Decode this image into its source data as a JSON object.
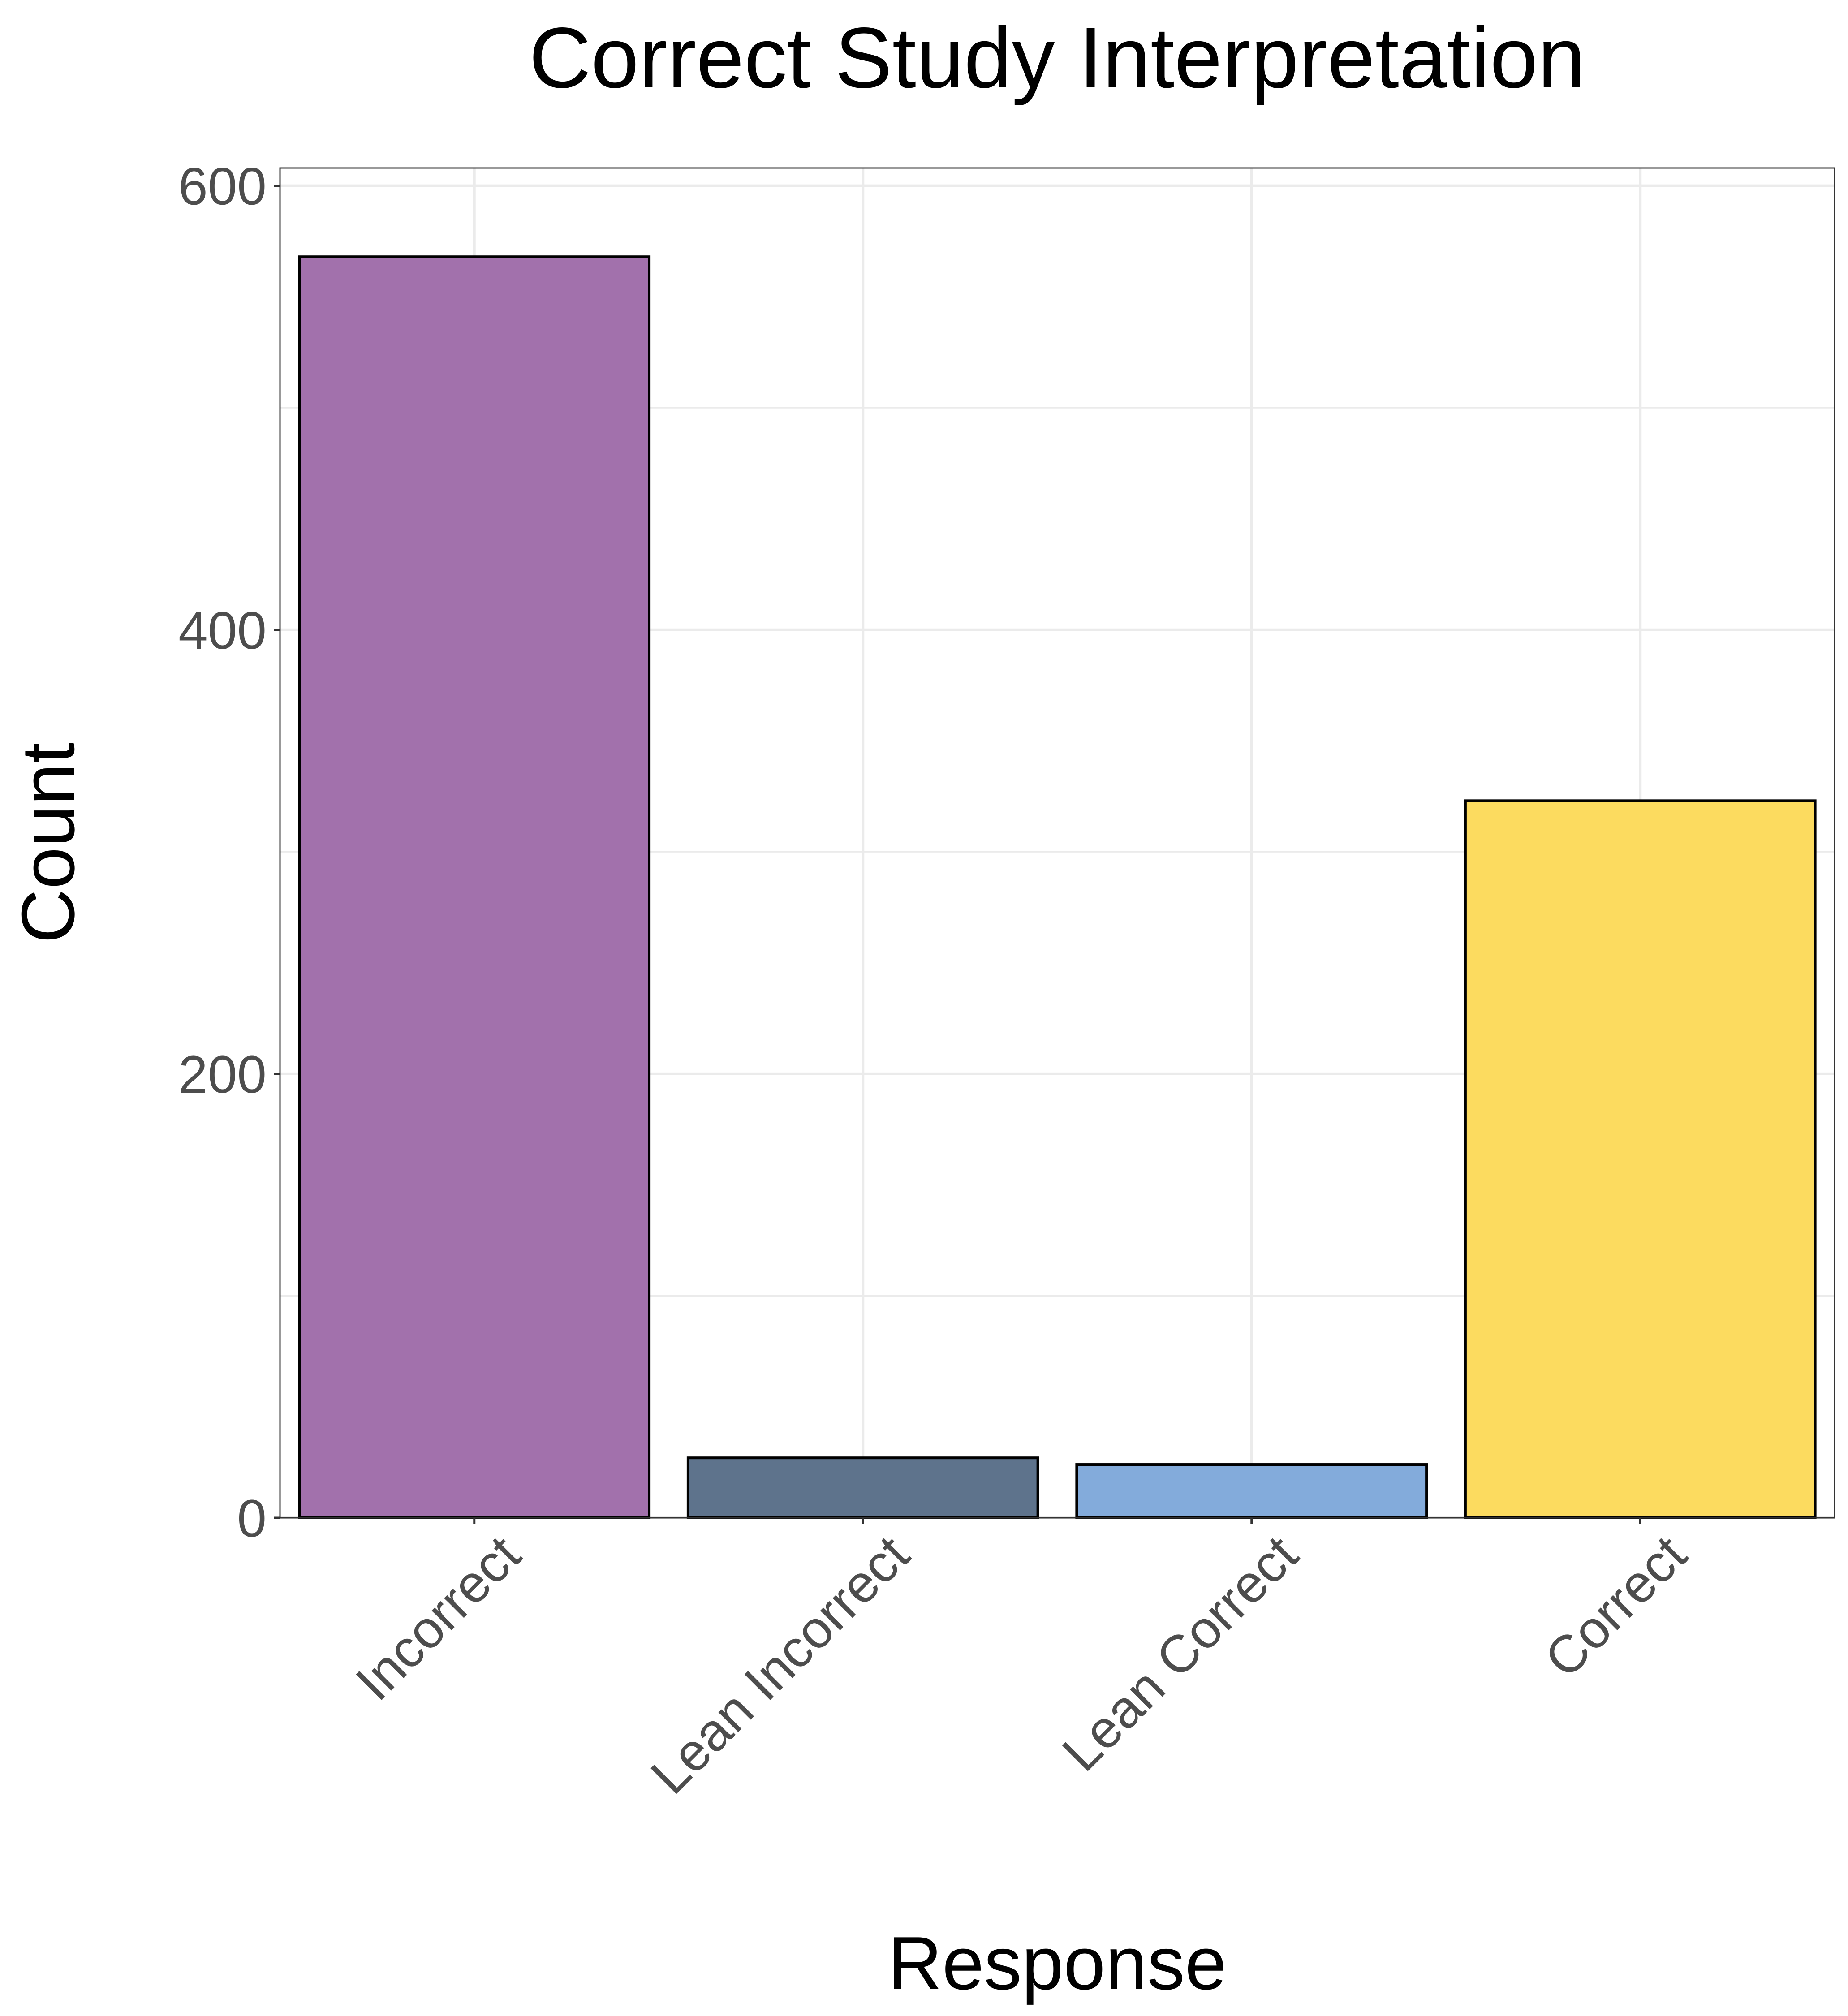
{
  "chart_data": {
    "type": "bar",
    "title": "Correct Study Interpretation",
    "xlabel": "Response",
    "ylabel": "Count",
    "categories": [
      "Incorrect",
      "Lean Incorrect",
      "Lean Correct",
      "Correct"
    ],
    "values": [
      568,
      27,
      24,
      323
    ],
    "colors": [
      "#A06EAA",
      "#5B708A",
      "#81A9DA",
      "#FCDA5C"
    ],
    "ylim": [
      0,
      600
    ],
    "yticks": [
      "0",
      "200",
      "400",
      "600"
    ],
    "grid": true,
    "legend": "none"
  }
}
